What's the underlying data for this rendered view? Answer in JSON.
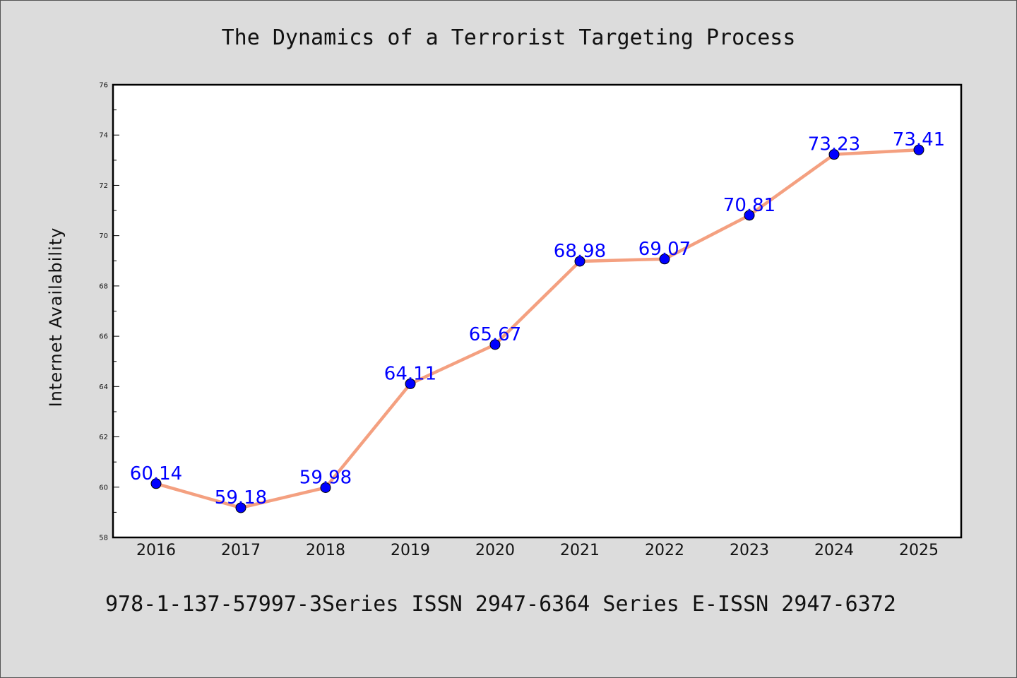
{
  "chart_data": {
    "type": "line",
    "title": "The Dynamics of a Terrorist Targeting Process",
    "xlabel": "",
    "ylabel": "Internet Availability",
    "categories": [
      "2016",
      "2017",
      "2018",
      "2019",
      "2020",
      "2021",
      "2022",
      "2023",
      "2024",
      "2025"
    ],
    "values": [
      60.14,
      59.18,
      59.98,
      64.11,
      65.67,
      68.98,
      69.07,
      70.81,
      73.23,
      73.41
    ],
    "data_labels": [
      "60.14",
      "59.18",
      "59.98",
      "64.11",
      "65.67",
      "68.98",
      "69.07",
      "70.81",
      "73.23",
      "73.41"
    ],
    "ylim": [
      58,
      76
    ],
    "yticks": [
      "58",
      "60",
      "62",
      "64",
      "66",
      "68",
      "70",
      "72",
      "74",
      "76"
    ],
    "grid": false,
    "line_color": "#f4a080",
    "marker_color": "#0000ff",
    "label_color": "#0000ff",
    "footer": "978-1-137-57997-3Series ISSN 2947-6364 Series E-ISSN 2947-6372"
  }
}
